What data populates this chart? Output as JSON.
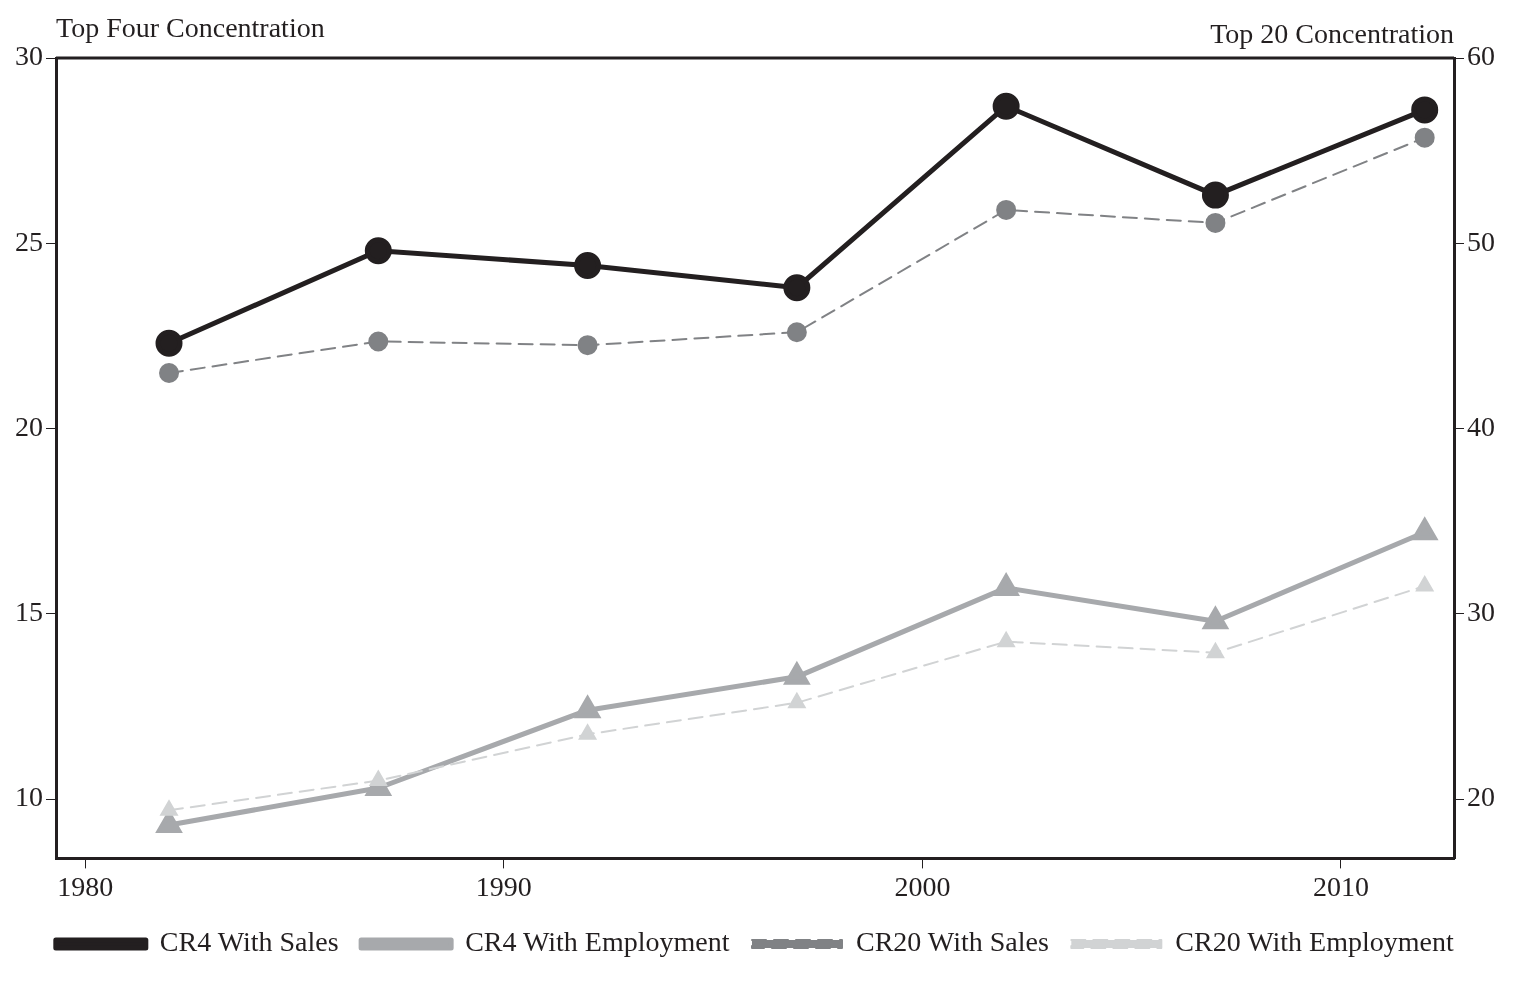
{
  "chart_data": {
    "type": "line",
    "ylabel": "Top Four Concentration",
    "y2label": "Top 20 Concentration",
    "x": [
      1982,
      1987,
      1992,
      1997,
      2002,
      2007,
      2012
    ],
    "xlim": [
      1979.3,
      2012.7
    ],
    "xticks": [
      1980,
      1990,
      2000,
      2010
    ],
    "ylim": [
      8.4,
      30
    ],
    "yticks": [
      10,
      15,
      20,
      25,
      30
    ],
    "y2lim": [
      16.8,
      60
    ],
    "y2ticks": [
      20,
      30,
      40,
      50,
      60
    ],
    "grid": false,
    "legend": "bottom",
    "series": [
      {
        "name": "CR4 With Sales",
        "color": "#231f20",
        "marker": "circle",
        "line_style": "solid",
        "values": [
          22.3,
          24.8,
          24.4,
          23.8,
          28.7,
          26.3,
          28.6
        ]
      },
      {
        "name": "CR4 With Employment",
        "color": "#a7a9ac",
        "marker": "triangle",
        "line_style": "solid",
        "values": [
          9.3,
          10.3,
          12.4,
          13.3,
          15.7,
          14.8,
          17.2
        ]
      },
      {
        "name": "CR20 With Sales",
        "color": "#808285",
        "marker": "circle",
        "line_style": "dashed",
        "axis": "y2",
        "values": [
          43.0,
          44.7,
          44.5,
          45.2,
          51.8,
          51.1,
          55.7
        ]
      },
      {
        "name": "CR20 With Employment",
        "color": "#d1d3d4",
        "marker": "triangle",
        "line_style": "dashed",
        "axis": "y2",
        "values": [
          19.4,
          21.0,
          23.5,
          25.2,
          28.5,
          27.9,
          31.5
        ]
      }
    ]
  }
}
